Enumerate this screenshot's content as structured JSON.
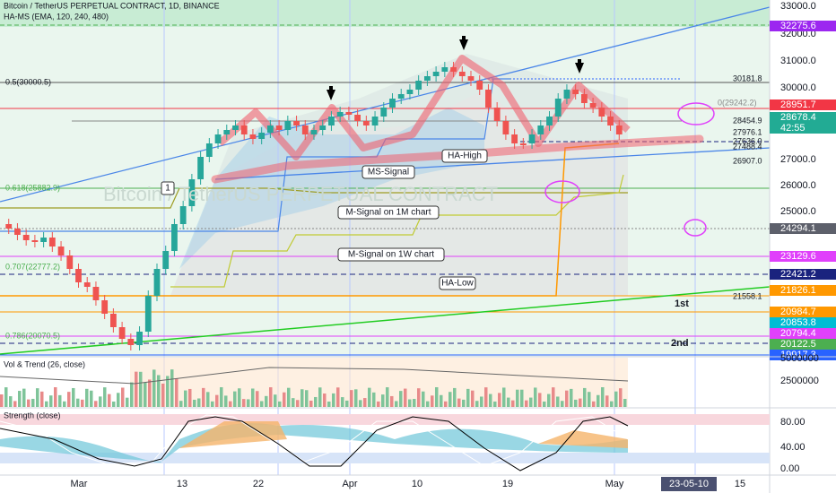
{
  "header": {
    "symbol": "Bitcoin / TetherUS PERPETUAL CONTRACT, 1D, BINANCE",
    "indicator": "HA-MS (EMA, 120, 240, 480)",
    "watermark": "Bitcoin / TetherUS PERPETUAL CONTRACT"
  },
  "price_axis": [
    "33000.0",
    "32000.0",
    "31000.0",
    "30000.0",
    "27000.0",
    "26000.0",
    "25000.0"
  ],
  "badges": [
    {
      "label": "32275.6",
      "color": "#9c27f0"
    },
    {
      "label": "28951.7",
      "color": "#f23645"
    },
    {
      "label": "28678.4",
      "color": "#22ab94",
      "sub": "42:55"
    },
    {
      "label": "24294.1",
      "color": "#5d606b"
    },
    {
      "label": "23129.6",
      "color": "#e040fb"
    },
    {
      "label": "22421.2",
      "color": "#1a237e"
    },
    {
      "label": "21826.1",
      "color": "#ff9800"
    },
    {
      "label": "20984.7",
      "color": "#ff9800"
    },
    {
      "label": "20853.8",
      "color": "#00bcd4"
    },
    {
      "label": "20794.4",
      "color": "#e040fb"
    },
    {
      "label": "20122.5",
      "color": "#4caf50"
    },
    {
      "label": "19917.3",
      "color": "#2962ff"
    }
  ],
  "fib_labels": [
    "0.5(30000.5)",
    "0.618(25882.9)",
    "0.707(22777.2)",
    "0.786(20070.5)"
  ],
  "level_labels": [
    "30181.8",
    "0(29242.2)",
    "28454.9",
    "27976.1",
    "27636.0",
    "27488.4",
    "26907.0",
    "21558.1",
    "1st",
    "2nd"
  ],
  "annotations": [
    "MS-Signal",
    "HA-High",
    "M-Signal on 1M chart",
    "M-Signal on 1W chart",
    "HA-Low",
    "1"
  ],
  "volume_panel": {
    "title": "Vol & Trend (26, close)",
    "axis": [
      "5000000",
      "2500000"
    ]
  },
  "strength_panel": {
    "title": "Strength (close)",
    "axis": [
      "80.00",
      "40.00",
      "0.00"
    ]
  },
  "time_axis": [
    "Mar",
    "13",
    "22",
    "Apr",
    "10",
    "19",
    "May",
    "23-05-10",
    "15"
  ]
}
